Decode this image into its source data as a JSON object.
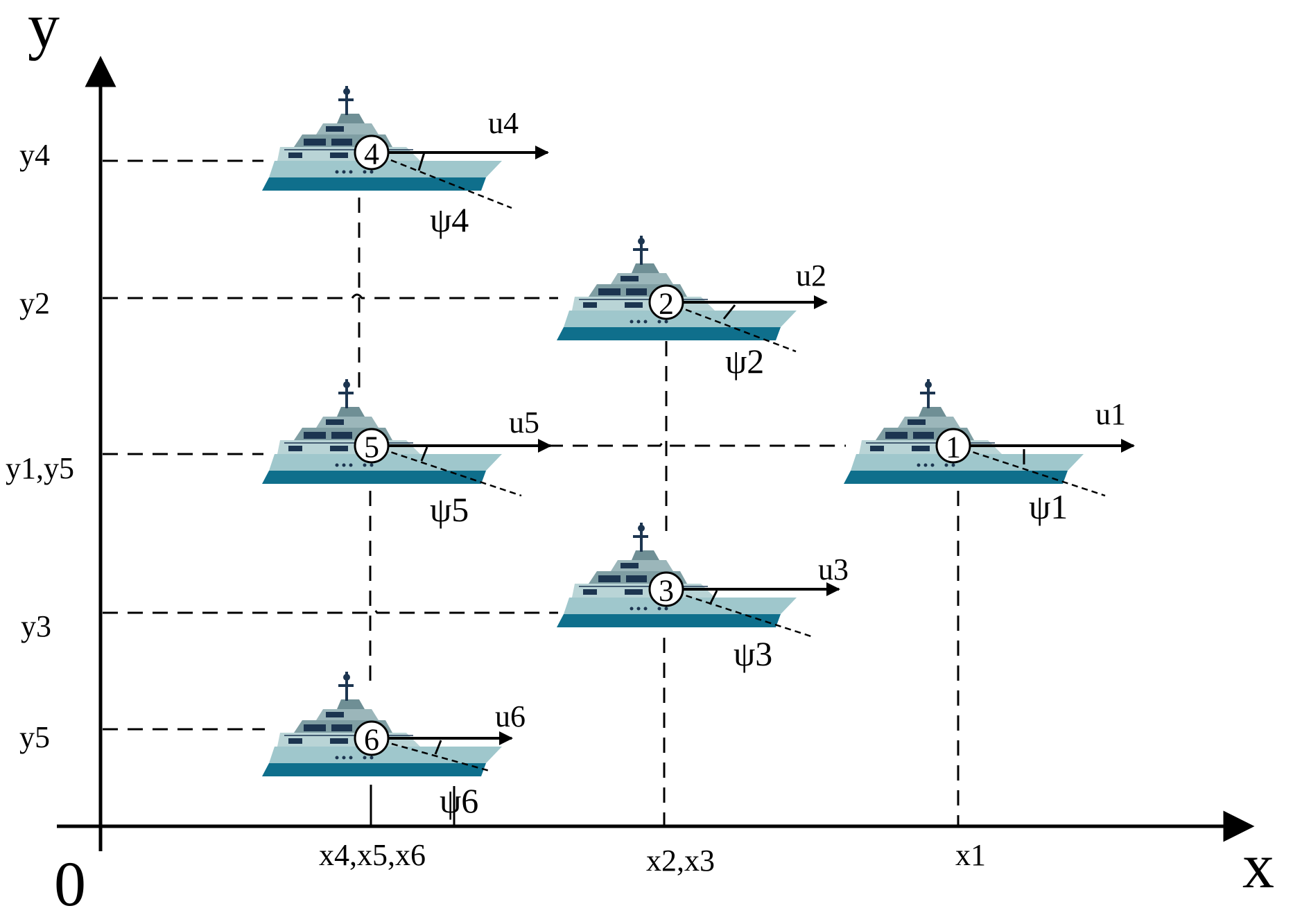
{
  "axes": {
    "x_letter": "x",
    "y_letter": "y",
    "origin": "0"
  },
  "y_ticks": [
    "y4",
    "y2",
    "y1,y5",
    "y3",
    "y5"
  ],
  "x_ticks": [
    "x4,x5,x6",
    "x2,x3",
    "x1"
  ],
  "colors": {
    "hull_dark": "#0f6f8c",
    "hull_light": "#9fc7cc",
    "cabin": "#7f9ea3",
    "window": "#1c3550"
  },
  "vessels": [
    {
      "id": "1",
      "velocity": "u1",
      "heading": "ψ1"
    },
    {
      "id": "2",
      "velocity": "u2",
      "heading": "ψ2"
    },
    {
      "id": "3",
      "velocity": "u3",
      "heading": "ψ3"
    },
    {
      "id": "4",
      "velocity": "u4",
      "heading": "ψ4"
    },
    {
      "id": "5",
      "velocity": "u5",
      "heading": "ψ5"
    },
    {
      "id": "6",
      "velocity": "u6",
      "heading": "ψ6"
    }
  ]
}
